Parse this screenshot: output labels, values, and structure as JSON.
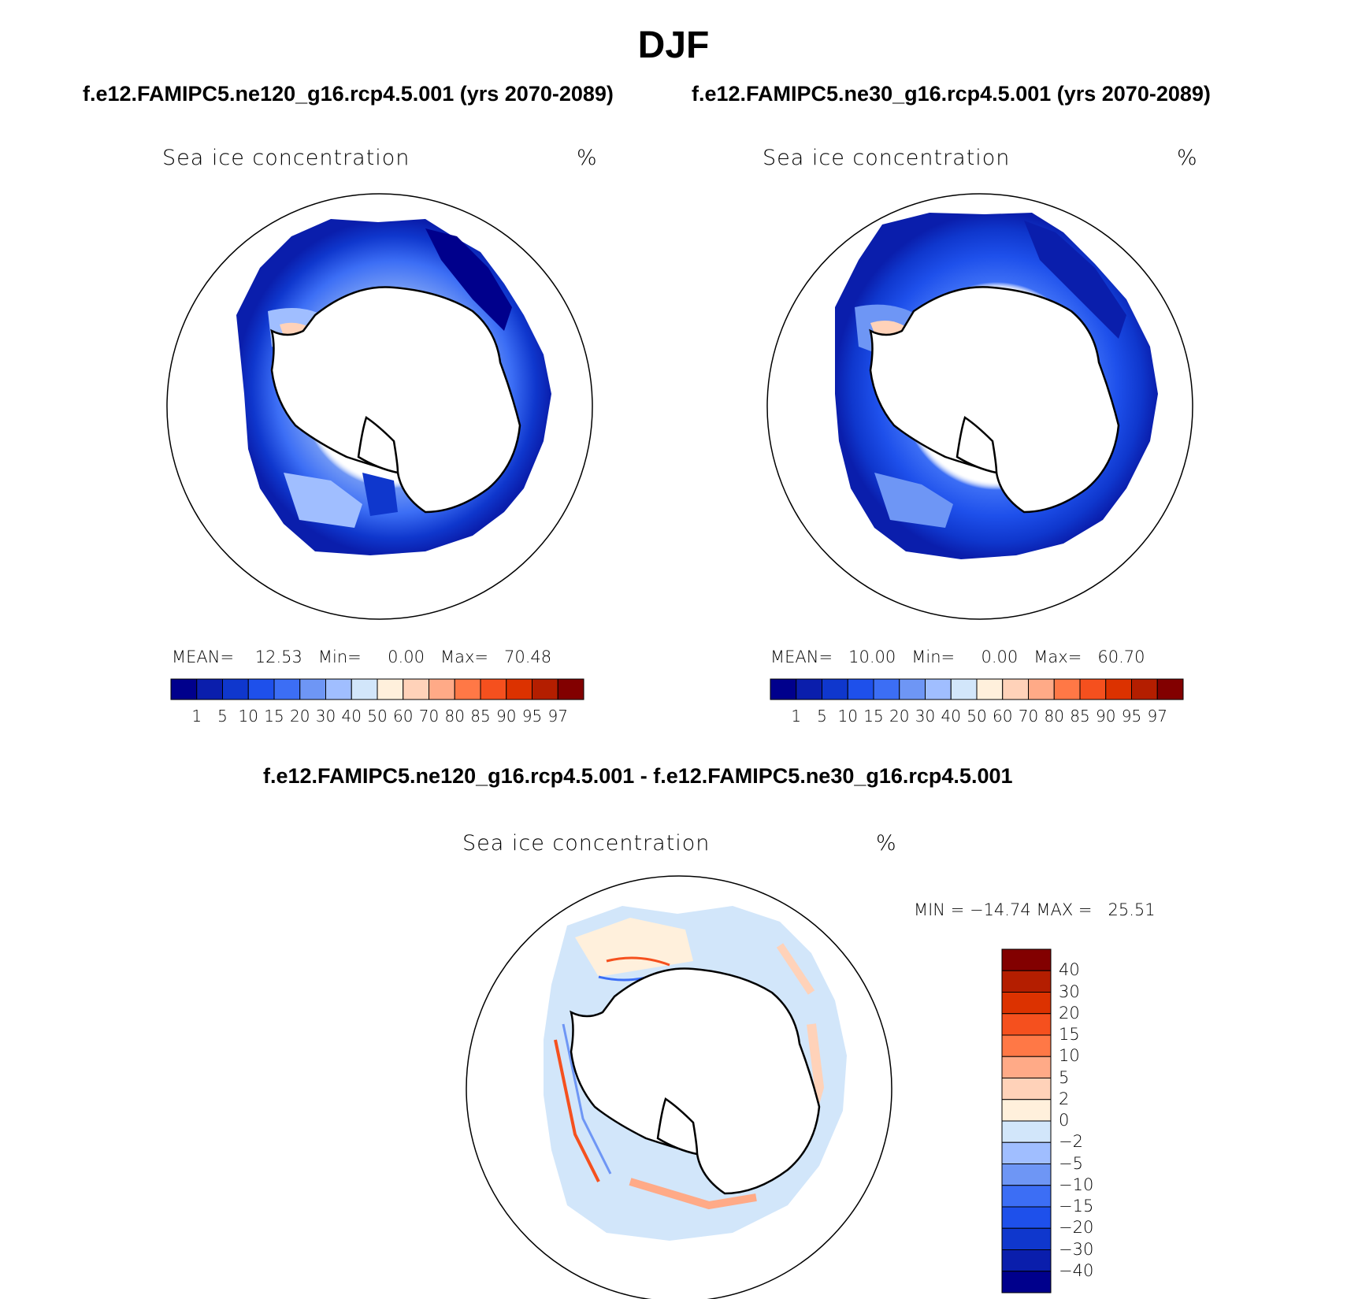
{
  "title": "DJF",
  "panels": [
    {
      "subtitle": "f.e12.FAMIPC5.ne120_g16.rcp4.5.001 (yrs 2070-2089)",
      "variable": "Sea ice concentration",
      "units": "%",
      "stats": {
        "mean_label": "MEAN=",
        "mean": "12.53",
        "min_label": "Min=",
        "min": "0.00",
        "max_label": "Max=",
        "max": "70.48"
      }
    },
    {
      "subtitle": "f.e12.FAMIPC5.ne30_g16.rcp4.5.001 (yrs 2070-2089)",
      "variable": "Sea ice concentration",
      "units": "%",
      "stats": {
        "mean_label": "MEAN=",
        "mean": "10.00",
        "min_label": "Min=",
        "min": "0.00",
        "max_label": "Max=",
        "max": "60.70"
      }
    }
  ],
  "difference": {
    "subtitle": "f.e12.FAMIPC5.ne120_g16.rcp4.5.001 - f.e12.FAMIPC5.ne30_g16.rcp4.5.001",
    "variable": "Sea ice concentration",
    "units": "%",
    "stats_text": "MIN = −14.74 MAX =   25.51"
  },
  "colorbar_abs": {
    "ticks": [
      "1",
      "5",
      "10",
      "15",
      "20",
      "30",
      "40",
      "50",
      "60",
      "70",
      "80",
      "85",
      "90",
      "95",
      "97"
    ],
    "colors": [
      "#00008c",
      "#0a1eac",
      "#0f37cd",
      "#1e50eb",
      "#3c6ef5",
      "#6e96f5",
      "#a0beff",
      "#d2e6fa",
      "#fff0dc",
      "#ffd2b9",
      "#ffaa87",
      "#ff7846",
      "#f5501e",
      "#dc3200",
      "#b41e00",
      "#820000"
    ]
  },
  "colorbar_diff": {
    "ticks": [
      "40",
      "30",
      "20",
      "15",
      "10",
      "5",
      "2",
      "0",
      "−2",
      "−5",
      "−10",
      "−15",
      "−20",
      "−30",
      "−40"
    ],
    "colors": [
      "#820000",
      "#b41e00",
      "#dc3200",
      "#f5501e",
      "#ff7846",
      "#ffaa87",
      "#ffd2b9",
      "#fff0dc",
      "#d2e6fa",
      "#a0beff",
      "#6e96f5",
      "#3c6ef5",
      "#1e50eb",
      "#0f37cd",
      "#0a1eac",
      "#00008c"
    ]
  }
}
